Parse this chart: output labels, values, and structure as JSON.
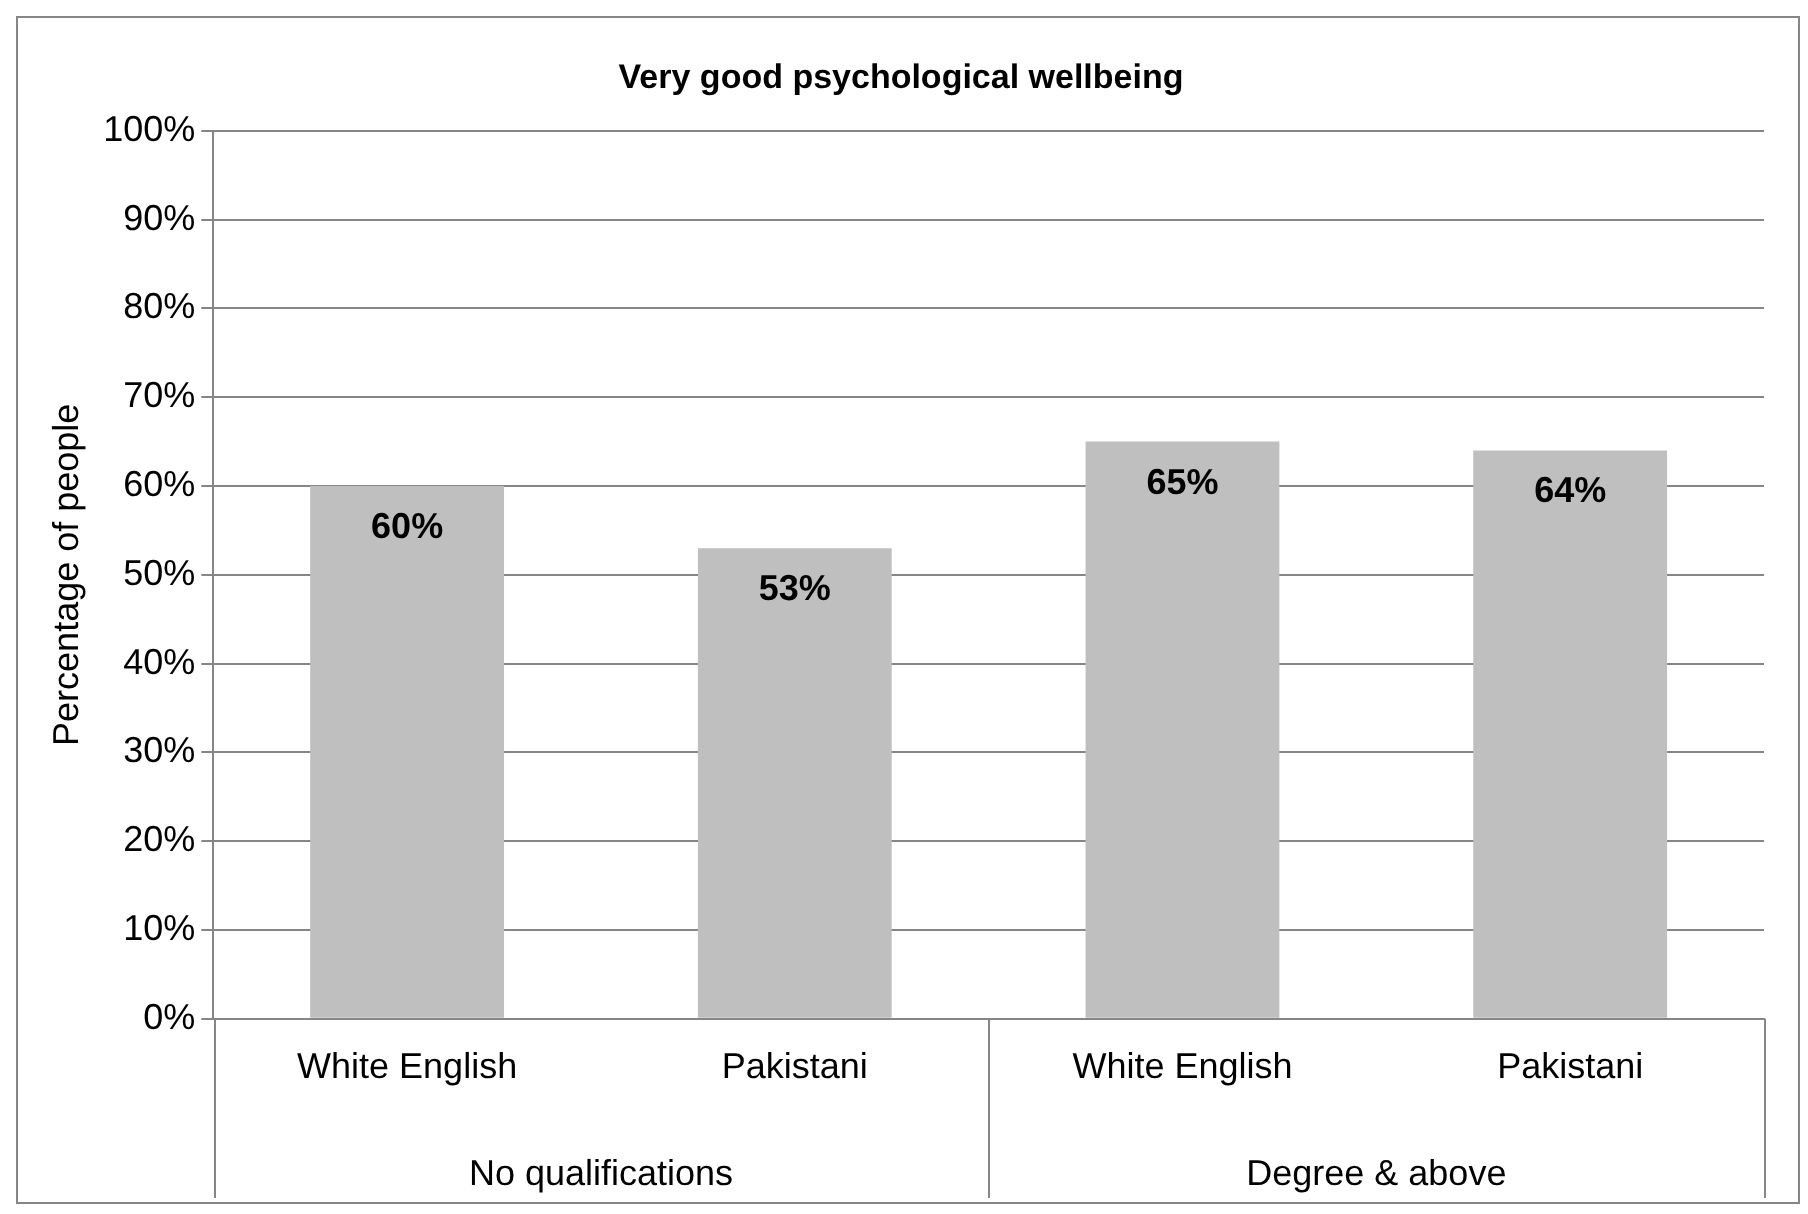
{
  "chart_data": {
    "type": "bar",
    "title": "Very good psychological wellbeing",
    "ylabel": "Percentage of people",
    "categories": [
      "White English",
      "Pakistani",
      "White English",
      "Pakistani"
    ],
    "values": [
      60,
      53,
      65,
      64
    ],
    "color": "#bfbfbf",
    "value_labels": [
      "60%",
      "53%",
      "65%",
      "64%"
    ],
    "ylim": [
      0,
      100
    ],
    "yticks": [
      {
        "value": 0,
        "label": "0%"
      },
      {
        "value": 10,
        "label": "10%"
      },
      {
        "value": 20,
        "label": "20%"
      },
      {
        "value": 30,
        "label": "30%"
      },
      {
        "value": 40,
        "label": "40%"
      },
      {
        "value": 50,
        "label": "50%"
      },
      {
        "value": 60,
        "label": "60%"
      },
      {
        "value": 70,
        "label": "70%"
      },
      {
        "value": 80,
        "label": "80%"
      },
      {
        "value": 90,
        "label": "90%"
      },
      {
        "value": 100,
        "label": "100%"
      }
    ],
    "annotations": [
      "No qualifications",
      "Degree & above"
    ],
    "grid": "y",
    "legend": false
  }
}
